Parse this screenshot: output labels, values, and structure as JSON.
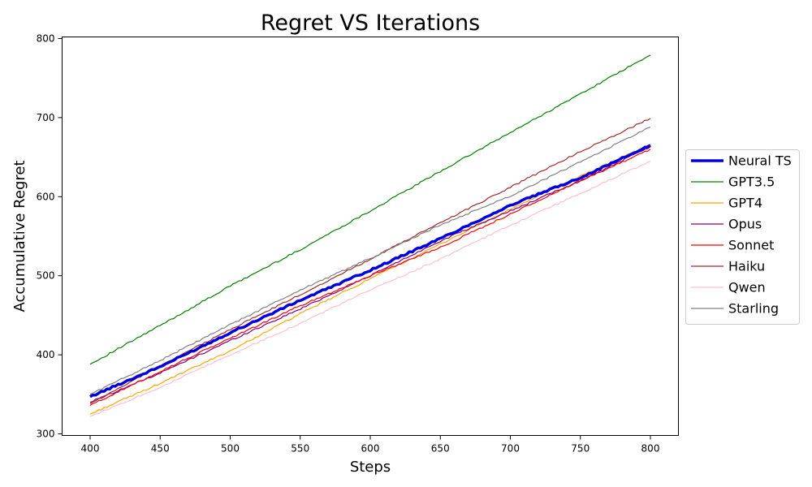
{
  "chart_data": {
    "type": "line",
    "title": "Regret VS Iterations",
    "xlabel": "Steps",
    "ylabel": "Accumulative Regret",
    "xlim": [
      380,
      820
    ],
    "ylim": [
      298,
      802
    ],
    "xticks": [
      400,
      450,
      500,
      550,
      600,
      650,
      700,
      750,
      800
    ],
    "yticks": [
      300,
      400,
      500,
      600,
      700,
      800
    ],
    "grid": false,
    "legend_position": "right-outside",
    "x": [
      400,
      450,
      500,
      550,
      600,
      650,
      700,
      750,
      800
    ],
    "series": [
      {
        "name": "Neural TS",
        "color": "#0000dd",
        "width": 3.5,
        "values": [
          347,
          385,
          428,
          469,
          507,
          547,
          589,
          624,
          665
        ]
      },
      {
        "name": "GPT3.5",
        "color": "#008000",
        "width": 1.2,
        "values": [
          388,
          437,
          487,
          533,
          582,
          632,
          681,
          730,
          779
        ]
      },
      {
        "name": "GPT4",
        "color": "#ffa500",
        "width": 1.2,
        "values": [
          325,
          364,
          405,
          452,
          496,
          540,
          584,
          626,
          666
        ]
      },
      {
        "name": "Opus",
        "color": "#800080",
        "width": 1.2,
        "values": [
          340,
          377,
          418,
          458,
          500,
          544,
          582,
          620,
          663
        ]
      },
      {
        "name": "Sonnet",
        "color": "#ff0000",
        "width": 1.2,
        "values": [
          336,
          379,
          421,
          462,
          500,
          536,
          578,
          620,
          660
        ]
      },
      {
        "name": "Haiku",
        "color": "#a52a2a",
        "width": 1.2,
        "values": [
          338,
          386,
          432,
          476,
          521,
          567,
          612,
          657,
          699
        ]
      },
      {
        "name": "Qwen",
        "color": "#ffc0cb",
        "width": 1.2,
        "values": [
          322,
          359,
          400,
          440,
          482,
          521,
          564,
          604,
          645
        ]
      },
      {
        "name": "Starling",
        "color": "#808080",
        "width": 1.2,
        "values": [
          350,
          393,
          438,
          482,
          522,
          564,
          601,
          644,
          688
        ]
      }
    ]
  }
}
